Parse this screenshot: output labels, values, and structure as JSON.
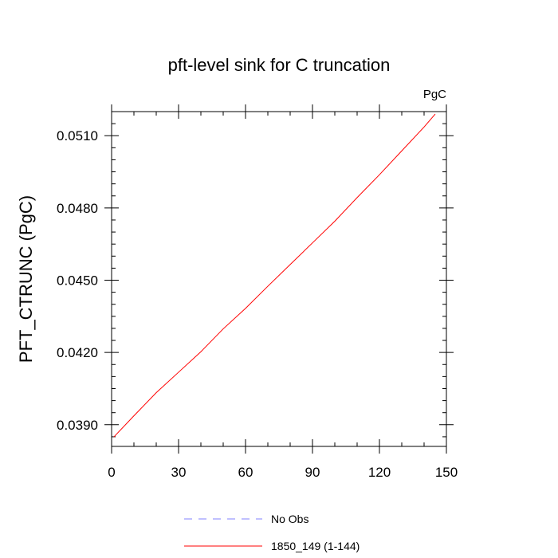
{
  "chart_data": {
    "type": "line",
    "title": "pft-level sink for C truncation",
    "units_label": "PgC",
    "xlabel": "",
    "ylabel": "PFT_CTRUNC  (PgC)",
    "xlim": [
      0,
      150
    ],
    "ylim": [
      0.0381,
      0.052
    ],
    "x_ticks": [
      0,
      30,
      60,
      90,
      120,
      150
    ],
    "x_tick_labels": [
      "0",
      "30",
      "60",
      "90",
      "120",
      "150"
    ],
    "x_minor_step": 10,
    "y_ticks": [
      0.039,
      0.042,
      0.045,
      0.048,
      0.051
    ],
    "y_tick_labels": [
      "0.0390",
      "0.0420",
      "0.0450",
      "0.0480",
      "0.0510"
    ],
    "y_minor_step": 0.0005,
    "grid": false,
    "legend_position": "bottom",
    "series": [
      {
        "name": "No Obs",
        "color": "#8080ff",
        "dash": "dashed",
        "x": [],
        "y": []
      },
      {
        "name": "1850_149 (1-144)",
        "color": "#ff0000",
        "dash": "solid",
        "x": [
          1,
          10,
          20,
          30,
          40,
          50,
          60,
          70,
          80,
          90,
          100,
          110,
          120,
          130,
          140,
          145
        ],
        "y": [
          0.03849,
          0.03937,
          0.04033,
          0.04118,
          0.04203,
          0.04298,
          0.04383,
          0.04475,
          0.04565,
          0.04655,
          0.04745,
          0.04843,
          0.04938,
          0.05037,
          0.05136,
          0.0519
        ]
      }
    ]
  }
}
